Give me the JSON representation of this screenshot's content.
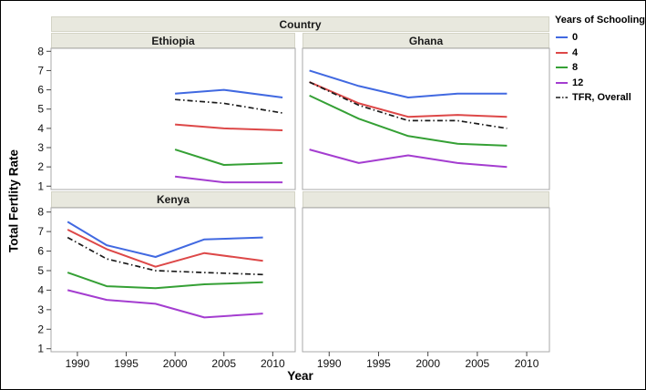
{
  "figure": {
    "strip_country": "Country",
    "x_axis_label": "Year",
    "y_axis_label": "Total Fertlity Rate",
    "legend": {
      "title": "Years of Schooling",
      "items": [
        {
          "label": "0",
          "color": "#4169e1",
          "dash": "solid"
        },
        {
          "label": "4",
          "color": "#dd4848",
          "dash": "solid"
        },
        {
          "label": "8",
          "color": "#35a035",
          "dash": "solid"
        },
        {
          "label": "12",
          "color": "#a43dd0",
          "dash": "solid"
        },
        {
          "label": "TFR, Overall",
          "color": "#1a1a1a",
          "dash": "dashdot"
        }
      ]
    }
  },
  "chart_data": {
    "type": "line",
    "facet_label": "Country",
    "xlabel": "Year",
    "ylabel": "Total Fertlity Rate",
    "legend_title": "Years of Schooling",
    "legend_position": "right",
    "grid": "off",
    "x_ticks": [
      1990,
      1995,
      2000,
      2005,
      2010
    ],
    "y_ticks": [
      1,
      2,
      3,
      4,
      5,
      6,
      7,
      8
    ],
    "xlim": [
      1987.3,
      2012.3
    ],
    "ylim": [
      0.8,
      8.2
    ],
    "panels": [
      {
        "country": "Ethiopia",
        "x": [
          2000,
          2005,
          2011
        ],
        "series": [
          {
            "name": "0",
            "values": [
              5.8,
              6.0,
              5.6
            ]
          },
          {
            "name": "4",
            "values": [
              4.2,
              4.0,
              3.9
            ]
          },
          {
            "name": "8",
            "values": [
              2.9,
              2.1,
              2.2
            ]
          },
          {
            "name": "12",
            "values": [
              1.5,
              1.2,
              1.2
            ]
          },
          {
            "name": "TFR, Overall",
            "values": [
              5.5,
              5.3,
              4.8
            ]
          }
        ]
      },
      {
        "country": "Ghana",
        "x": [
          1988,
          1993,
          1998,
          2003,
          2008
        ],
        "series": [
          {
            "name": "0",
            "values": [
              7.0,
              6.2,
              5.6,
              5.8,
              5.8
            ]
          },
          {
            "name": "4",
            "values": [
              6.4,
              5.3,
              4.6,
              4.7,
              4.6
            ]
          },
          {
            "name": "8",
            "values": [
              5.7,
              4.5,
              3.6,
              3.2,
              3.1
            ]
          },
          {
            "name": "12",
            "values": [
              2.9,
              2.2,
              2.6,
              2.2,
              2.0
            ]
          },
          {
            "name": "TFR, Overall",
            "values": [
              6.4,
              5.2,
              4.4,
              4.4,
              4.0
            ]
          }
        ]
      },
      {
        "country": "Kenya",
        "x": [
          1989,
          1993,
          1998,
          2003,
          2009
        ],
        "series": [
          {
            "name": "0",
            "values": [
              7.5,
              6.3,
              5.7,
              6.6,
              6.7
            ]
          },
          {
            "name": "4",
            "values": [
              7.1,
              6.1,
              5.2,
              5.9,
              5.5
            ]
          },
          {
            "name": "8",
            "values": [
              4.9,
              4.2,
              4.1,
              4.3,
              4.4
            ]
          },
          {
            "name": "12",
            "values": [
              4.0,
              3.5,
              3.3,
              2.6,
              2.8
            ]
          },
          {
            "name": "TFR, Overall",
            "values": [
              6.7,
              5.6,
              5.0,
              4.9,
              4.8
            ]
          }
        ]
      }
    ]
  }
}
